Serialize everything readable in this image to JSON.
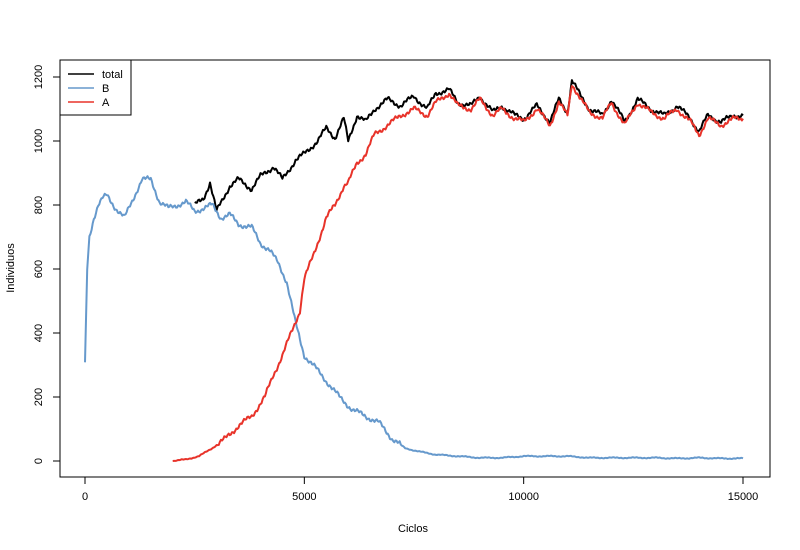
{
  "chart_data": {
    "type": "line",
    "title": "",
    "xlabel": "Ciclos",
    "ylabel": "Individuos",
    "xlim": [
      0,
      15000
    ],
    "ylim": [
      0,
      1200
    ],
    "xticks": [
      0,
      5000,
      10000,
      15000
    ],
    "yticks": [
      0,
      200,
      400,
      600,
      800,
      1000,
      1200
    ],
    "grid": false,
    "legend_position": "top-left",
    "series": [
      {
        "name": "total",
        "color": "#000000",
        "x": [
          2500,
          2700,
          2850,
          3000,
          3300,
          3500,
          3800,
          4000,
          4300,
          4500,
          4800,
          5000,
          5300,
          5500,
          5700,
          5900,
          6000,
          6200,
          6400,
          6600,
          6900,
          7200,
          7500,
          7800,
          8000,
          8300,
          8500,
          8800,
          9000,
          9300,
          9500,
          9800,
          10000,
          10300,
          10600,
          10800,
          11000,
          11100,
          11300,
          11500,
          11800,
          12000,
          12300,
          12600,
          12900,
          13200,
          13500,
          13800,
          14000,
          14200,
          14500,
          14800,
          15000
        ],
        "y": [
          800,
          820,
          870,
          780,
          860,
          880,
          850,
          890,
          920,
          880,
          940,
          960,
          1000,
          1040,
          1010,
          1070,
          1000,
          1080,
          1060,
          1100,
          1130,
          1110,
          1140,
          1100,
          1150,
          1160,
          1120,
          1110,
          1140,
          1090,
          1110,
          1080,
          1070,
          1110,
          1060,
          1130,
          1090,
          1190,
          1140,
          1100,
          1080,
          1130,
          1060,
          1130,
          1100,
          1080,
          1110,
          1070,
          1030,
          1080,
          1060,
          1080,
          1080
        ]
      },
      {
        "name": "B",
        "color": "#6699CC",
        "x": [
          0,
          50,
          100,
          150,
          200,
          300,
          400,
          500,
          700,
          900,
          1100,
          1300,
          1500,
          1700,
          1900,
          2100,
          2300,
          2500,
          2700,
          2900,
          3100,
          3300,
          3500,
          3800,
          4000,
          4200,
          4400,
          4600,
          4800,
          5000,
          5200,
          5500,
          5800,
          6100,
          6400,
          6700,
          7000,
          7300,
          7600,
          8000,
          8500,
          9000,
          9500,
          10000,
          10500,
          11000,
          11500,
          12000,
          12500,
          13000,
          13500,
          14000,
          14500,
          15000
        ],
        "y": [
          300,
          600,
          700,
          730,
          760,
          800,
          820,
          830,
          790,
          760,
          820,
          880,
          880,
          810,
          790,
          800,
          810,
          780,
          790,
          800,
          760,
          770,
          740,
          730,
          680,
          660,
          620,
          560,
          430,
          330,
          300,
          250,
          200,
          160,
          140,
          120,
          70,
          40,
          30,
          20,
          15,
          10,
          10,
          15,
          15,
          15,
          10,
          10,
          10,
          10,
          8,
          10,
          8,
          8
        ]
      },
      {
        "name": "A",
        "color": "#E8332A",
        "x": [
          2000,
          2300,
          2600,
          2900,
          3200,
          3500,
          3800,
          4100,
          4300,
          4500,
          4700,
          4900,
          5000,
          5200,
          5400,
          5500,
          5700,
          5900,
          6000,
          6200,
          6400,
          6600,
          6900,
          7200,
          7500,
          7800,
          8000,
          8300,
          8500,
          8800,
          9000,
          9300,
          9500,
          9800,
          10000,
          10300,
          10600,
          10800,
          11000,
          11100,
          11300,
          11500,
          11800,
          12000,
          12300,
          12600,
          12900,
          13200,
          13500,
          13800,
          14000,
          14200,
          14500,
          14800,
          15000
        ],
        "y": [
          0,
          5,
          15,
          40,
          70,
          110,
          140,
          200,
          270,
          330,
          400,
          470,
          570,
          640,
          720,
          760,
          800,
          860,
          870,
          930,
          960,
          1020,
          1050,
          1080,
          1100,
          1080,
          1120,
          1150,
          1110,
          1100,
          1130,
          1080,
          1100,
          1070,
          1060,
          1100,
          1050,
          1120,
          1080,
          1180,
          1130,
          1090,
          1070,
          1120,
          1050,
          1120,
          1090,
          1070,
          1100,
          1060,
          1020,
          1070,
          1050,
          1070,
          1070
        ]
      }
    ]
  }
}
